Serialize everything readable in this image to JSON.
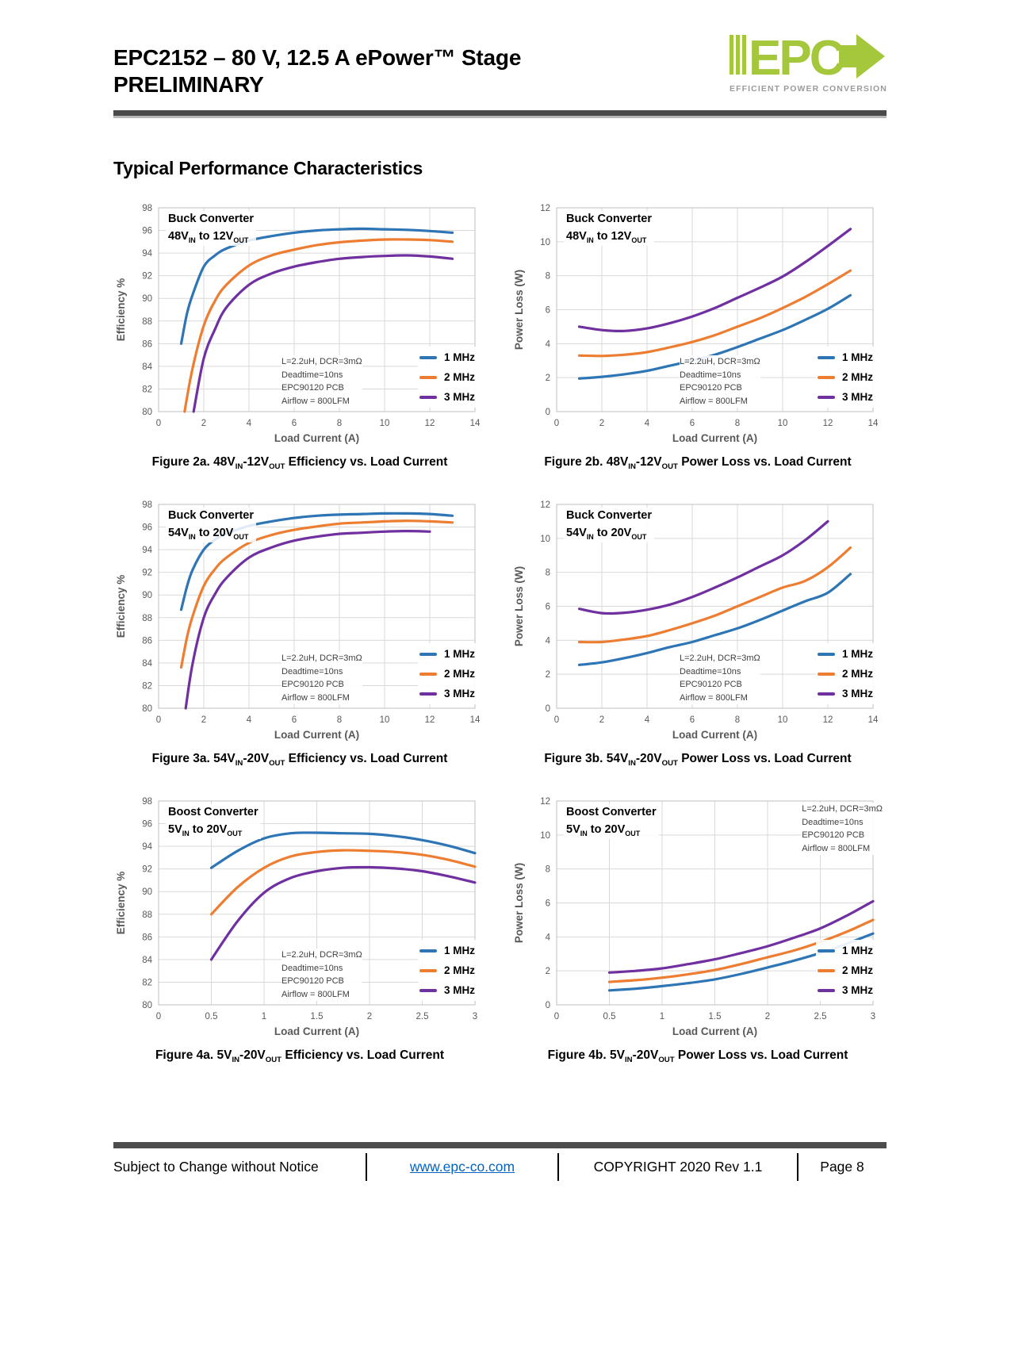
{
  "page": {
    "title_line1": "EPC2152 – 80 V, 12.5 A ePower™ Stage",
    "title_line2": "PRELIMINARY",
    "section_heading": "Typical Performance Characteristics"
  },
  "logo": {
    "text": "EPC",
    "tagline": "EFFICIENT POWER CONVERSION",
    "green": "#a4c73c",
    "gray": "#9b9b9b"
  },
  "footer": {
    "notice": "Subject to Change without Notice",
    "link": "www.epc-co.com",
    "copyright": "COPYRIGHT 2020 Rev 1.1",
    "page": "Page 8"
  },
  "colors": {
    "mhz1": "#2E75B6",
    "mhz2": "#ED7D31",
    "mhz3": "#7030A0",
    "grid": "#D9D9D9",
    "plot_border": "#BFBFBF",
    "axis_text": "#595959"
  },
  "legend": [
    "1 MHz",
    "2 MHz",
    "3 MHz"
  ],
  "annotation_lines": [
    "L=2.2uH, DCR=3mΩ",
    "Deadtime=10ns",
    "EPC90120 PCB",
    "Airflow = 800LFM"
  ],
  "captions": [
    {
      "pre": "Figure 2a. 48V",
      "sub1": "IN",
      "mid": "-12V",
      "sub2": "OUT",
      "post": " Efficiency vs. Load Current"
    },
    {
      "pre": "Figure 2b. 48V",
      "sub1": "IN",
      "mid": "-12V",
      "sub2": "OUT",
      "post": " Power Loss vs. Load Current"
    },
    {
      "pre": "Figure 3a. 54V",
      "sub1": "IN",
      "mid": "-20V",
      "sub2": "OUT",
      "post": " Efficiency vs. Load Current"
    },
    {
      "pre": "Figure 3b. 54V",
      "sub1": "IN",
      "mid": "-20V",
      "sub2": "OUT",
      "post": " Power Loss vs. Load Current"
    },
    {
      "pre": "Figure 4a. 5V",
      "sub1": "IN",
      "mid": "-20V",
      "sub2": "OUT",
      "post": " Efficiency vs. Load Current"
    },
    {
      "pre": "Figure 4b. 5V",
      "sub1": "IN",
      "mid": "-20V",
      "sub2": "OUT",
      "post": " Power Loss vs. Load Current"
    }
  ],
  "chart_data": [
    {
      "id": "fig2a",
      "type": "line",
      "title_line1": "Buck Converter",
      "title_l2_pre": "48V",
      "title_l2_sub1": "IN",
      "title_l2_mid": " to 12V",
      "title_l2_sub2": "OUT",
      "xlabel": "Load Current (A)",
      "ylabel": "Efficiency %",
      "xlim": [
        0,
        14
      ],
      "xticks": [
        0,
        2,
        4,
        6,
        8,
        10,
        12,
        14
      ],
      "ylim": [
        80,
        98
      ],
      "yticks": [
        80,
        82,
        84,
        86,
        88,
        90,
        92,
        94,
        96,
        98
      ],
      "grid": true,
      "legend_position": "bottom-right",
      "annotation_position": "bottom-left",
      "series": [
        {
          "name": "1 MHz",
          "color_key": "mhz1",
          "x": [
            1,
            1.25,
            1.5,
            2,
            2.5,
            3,
            4,
            5,
            6,
            7,
            8,
            9,
            10,
            11,
            12,
            13
          ],
          "y": [
            86,
            88.6,
            90.3,
            92.8,
            93.8,
            94.4,
            95.1,
            95.5,
            95.8,
            96.0,
            96.1,
            96.15,
            96.1,
            96.05,
            95.95,
            95.8
          ]
        },
        {
          "name": "2 MHz",
          "color_key": "mhz2",
          "x": [
            1.15,
            1.5,
            2,
            2.5,
            3,
            4,
            5,
            6,
            7,
            8,
            9,
            10,
            11,
            12,
            13
          ],
          "y": [
            80,
            83.8,
            87.6,
            89.8,
            91.2,
            92.9,
            93.8,
            94.3,
            94.7,
            94.95,
            95.1,
            95.2,
            95.2,
            95.15,
            95.0
          ]
        },
        {
          "name": "3 MHz",
          "color_key": "mhz3",
          "x": [
            1.55,
            2,
            2.5,
            3,
            4,
            5,
            6,
            7,
            8,
            9,
            10,
            11,
            12,
            13
          ],
          "y": [
            80,
            84.7,
            87.3,
            89.2,
            91.2,
            92.2,
            92.8,
            93.2,
            93.5,
            93.65,
            93.75,
            93.8,
            93.7,
            93.5
          ]
        }
      ]
    },
    {
      "id": "fig2b",
      "type": "line",
      "title_line1": "Buck Converter",
      "title_l2_pre": "48V",
      "title_l2_sub1": "IN",
      "title_l2_mid": " to 12V",
      "title_l2_sub2": "OUT",
      "xlabel": "Load Current (A)",
      "ylabel": "Power Loss (W)",
      "xlim": [
        0,
        14
      ],
      "xticks": [
        0,
        2,
        4,
        6,
        8,
        10,
        12,
        14
      ],
      "ylim": [
        0,
        12
      ],
      "yticks": [
        0,
        2,
        4,
        6,
        8,
        10,
        12
      ],
      "grid": true,
      "legend_position": "bottom-right",
      "annotation_position": "bottom-left",
      "series": [
        {
          "name": "1 MHz",
          "color_key": "mhz1",
          "x": [
            1,
            2,
            3,
            4,
            5,
            6,
            7,
            8,
            9,
            10,
            11,
            12,
            13
          ],
          "y": [
            1.95,
            2.05,
            2.2,
            2.4,
            2.7,
            3.0,
            3.35,
            3.8,
            4.3,
            4.8,
            5.4,
            6.05,
            6.85
          ]
        },
        {
          "name": "2 MHz",
          "color_key": "mhz2",
          "x": [
            1,
            2,
            3,
            4,
            5,
            6,
            7,
            8,
            9,
            10,
            11,
            12,
            13
          ],
          "y": [
            3.3,
            3.28,
            3.35,
            3.5,
            3.78,
            4.1,
            4.5,
            5.0,
            5.5,
            6.1,
            6.75,
            7.5,
            8.3
          ]
        },
        {
          "name": "3 MHz",
          "color_key": "mhz3",
          "x": [
            1,
            2,
            3,
            4,
            5,
            6,
            7,
            8,
            9,
            10,
            11,
            12,
            13
          ],
          "y": [
            5.0,
            4.8,
            4.75,
            4.9,
            5.2,
            5.6,
            6.1,
            6.7,
            7.3,
            7.95,
            8.8,
            9.75,
            10.75
          ]
        }
      ]
    },
    {
      "id": "fig3a",
      "type": "line",
      "title_line1": "Buck Converter",
      "title_l2_pre": "54V",
      "title_l2_sub1": "IN",
      "title_l2_mid": " to 20V",
      "title_l2_sub2": "OUT",
      "xlabel": "Load Current (A)",
      "ylabel": "Efficiency %",
      "xlim": [
        0,
        14
      ],
      "xticks": [
        0,
        2,
        4,
        6,
        8,
        10,
        12,
        14
      ],
      "ylim": [
        80,
        98
      ],
      "yticks": [
        80,
        82,
        84,
        86,
        88,
        90,
        92,
        94,
        96,
        98
      ],
      "grid": true,
      "legend_position": "bottom-right",
      "annotation_position": "bottom-left",
      "series": [
        {
          "name": "1 MHz",
          "color_key": "mhz1",
          "x": [
            1,
            1.25,
            1.5,
            2,
            2.5,
            3,
            4,
            5,
            6,
            7,
            8,
            9,
            10,
            11,
            12,
            13
          ],
          "y": [
            88.7,
            90.7,
            92.2,
            94.0,
            94.9,
            95.4,
            96.1,
            96.5,
            96.8,
            97.0,
            97.1,
            97.15,
            97.2,
            97.2,
            97.15,
            97.0
          ]
        },
        {
          "name": "2 MHz",
          "color_key": "mhz2",
          "x": [
            1,
            1.25,
            1.5,
            2,
            2.5,
            3,
            4,
            5,
            6,
            7,
            8,
            9,
            10,
            11,
            12,
            13
          ],
          "y": [
            83.6,
            86.2,
            88.1,
            90.8,
            92.3,
            93.3,
            94.6,
            95.3,
            95.75,
            96.05,
            96.3,
            96.4,
            96.5,
            96.55,
            96.5,
            96.4
          ]
        },
        {
          "name": "3 MHz",
          "color_key": "mhz3",
          "x": [
            1.2,
            1.5,
            2,
            2.5,
            3,
            4,
            5,
            6,
            7,
            8,
            9,
            10,
            11,
            12
          ],
          "y": [
            80,
            83.9,
            88.0,
            90.1,
            91.5,
            93.3,
            94.2,
            94.8,
            95.15,
            95.4,
            95.5,
            95.6,
            95.65,
            95.6
          ]
        }
      ]
    },
    {
      "id": "fig3b",
      "type": "line",
      "title_line1": "Buck Converter",
      "title_l2_pre": "54V",
      "title_l2_sub1": "IN",
      "title_l2_mid": " to 20V",
      "title_l2_sub2": "OUT",
      "xlabel": "Load Current (A)",
      "ylabel": "Power Loss (W)",
      "xlim": [
        0,
        14
      ],
      "xticks": [
        0,
        2,
        4,
        6,
        8,
        10,
        12,
        14
      ],
      "ylim": [
        0,
        12
      ],
      "yticks": [
        0,
        2,
        4,
        6,
        8,
        10,
        12
      ],
      "grid": true,
      "legend_position": "bottom-right",
      "annotation_position": "bottom-left",
      "series": [
        {
          "name": "1 MHz",
          "color_key": "mhz1",
          "x": [
            1,
            2,
            3,
            4,
            5,
            6,
            7,
            8,
            9,
            10,
            11,
            12,
            13
          ],
          "y": [
            2.55,
            2.7,
            2.95,
            3.25,
            3.6,
            3.9,
            4.3,
            4.7,
            5.2,
            5.75,
            6.3,
            6.8,
            7.9
          ]
        },
        {
          "name": "2 MHz",
          "color_key": "mhz2",
          "x": [
            1,
            2,
            3,
            4,
            5,
            6,
            7,
            8,
            9,
            10,
            11,
            12,
            13
          ],
          "y": [
            3.9,
            3.9,
            4.05,
            4.25,
            4.6,
            5.0,
            5.45,
            6.0,
            6.55,
            7.1,
            7.5,
            8.3,
            9.45
          ]
        },
        {
          "name": "3 MHz",
          "color_key": "mhz3",
          "x": [
            1,
            2,
            3,
            4,
            5,
            6,
            7,
            8,
            9,
            10,
            11,
            12
          ],
          "y": [
            5.85,
            5.6,
            5.62,
            5.8,
            6.1,
            6.55,
            7.1,
            7.7,
            8.35,
            9.0,
            9.9,
            11.0
          ]
        }
      ]
    },
    {
      "id": "fig4a",
      "type": "line",
      "title_line1": "Boost Converter",
      "title_l2_pre": "5V",
      "title_l2_sub1": "IN",
      "title_l2_mid": " to 20V",
      "title_l2_sub2": "OUT",
      "xlabel": "Load Current (A)",
      "ylabel": "Efficiency %",
      "xlim": [
        0,
        3
      ],
      "xticks": [
        0,
        0.5,
        1,
        1.5,
        2,
        2.5,
        3
      ],
      "ylim": [
        80,
        98
      ],
      "yticks": [
        80,
        82,
        84,
        86,
        88,
        90,
        92,
        94,
        96,
        98
      ],
      "grid": true,
      "legend_position": "bottom-right",
      "annotation_position": "bottom-left",
      "series": [
        {
          "name": "1 MHz",
          "color_key": "mhz1",
          "x": [
            0.5,
            0.75,
            1,
            1.25,
            1.5,
            1.75,
            2,
            2.25,
            2.5,
            2.75,
            3
          ],
          "y": [
            92.1,
            93.6,
            94.7,
            95.15,
            95.2,
            95.15,
            95.1,
            94.9,
            94.55,
            94.05,
            93.4
          ]
        },
        {
          "name": "2 MHz",
          "color_key": "mhz2",
          "x": [
            0.5,
            0.75,
            1,
            1.25,
            1.5,
            1.75,
            2,
            2.25,
            2.5,
            2.75,
            3
          ],
          "y": [
            88.0,
            90.4,
            92.1,
            93.1,
            93.5,
            93.65,
            93.6,
            93.5,
            93.25,
            92.8,
            92.2
          ]
        },
        {
          "name": "3 MHz",
          "color_key": "mhz3",
          "x": [
            0.5,
            0.75,
            1,
            1.25,
            1.5,
            1.75,
            2,
            2.25,
            2.5,
            2.75,
            3
          ],
          "y": [
            84.0,
            87.4,
            89.9,
            91.2,
            91.8,
            92.1,
            92.15,
            92.05,
            91.8,
            91.35,
            90.8
          ]
        }
      ]
    },
    {
      "id": "fig4b",
      "type": "line",
      "title_line1": "Boost Converter",
      "title_l2_pre": "5V",
      "title_l2_sub1": "IN",
      "title_l2_mid": " to 20V",
      "title_l2_sub2": "OUT",
      "xlabel": "Load Current (A)",
      "ylabel": "Power Loss (W)",
      "xlim": [
        0,
        3
      ],
      "xticks": [
        0,
        0.5,
        1,
        1.5,
        2,
        2.5,
        3
      ],
      "ylim": [
        0,
        12
      ],
      "yticks": [
        0,
        2,
        4,
        6,
        8,
        10,
        12
      ],
      "grid": true,
      "legend_position": "bottom-right",
      "annotation_position": "top-right",
      "series": [
        {
          "name": "1 MHz",
          "color_key": "mhz1",
          "x": [
            0.5,
            0.75,
            1,
            1.25,
            1.5,
            1.75,
            2,
            2.25,
            2.5,
            2.75,
            3
          ],
          "y": [
            0.85,
            0.95,
            1.1,
            1.28,
            1.5,
            1.82,
            2.2,
            2.6,
            3.05,
            3.6,
            4.2
          ]
        },
        {
          "name": "2 MHz",
          "color_key": "mhz2",
          "x": [
            0.5,
            0.75,
            1,
            1.25,
            1.5,
            1.75,
            2,
            2.25,
            2.5,
            2.75,
            3
          ],
          "y": [
            1.35,
            1.45,
            1.6,
            1.8,
            2.05,
            2.4,
            2.8,
            3.2,
            3.7,
            4.3,
            5.0
          ]
        },
        {
          "name": "3 MHz",
          "color_key": "mhz3",
          "x": [
            0.5,
            0.75,
            1,
            1.25,
            1.5,
            1.75,
            2,
            2.25,
            2.5,
            2.75,
            3
          ],
          "y": [
            1.9,
            2.0,
            2.15,
            2.4,
            2.68,
            3.05,
            3.45,
            3.95,
            4.5,
            5.25,
            6.1
          ]
        }
      ]
    }
  ]
}
